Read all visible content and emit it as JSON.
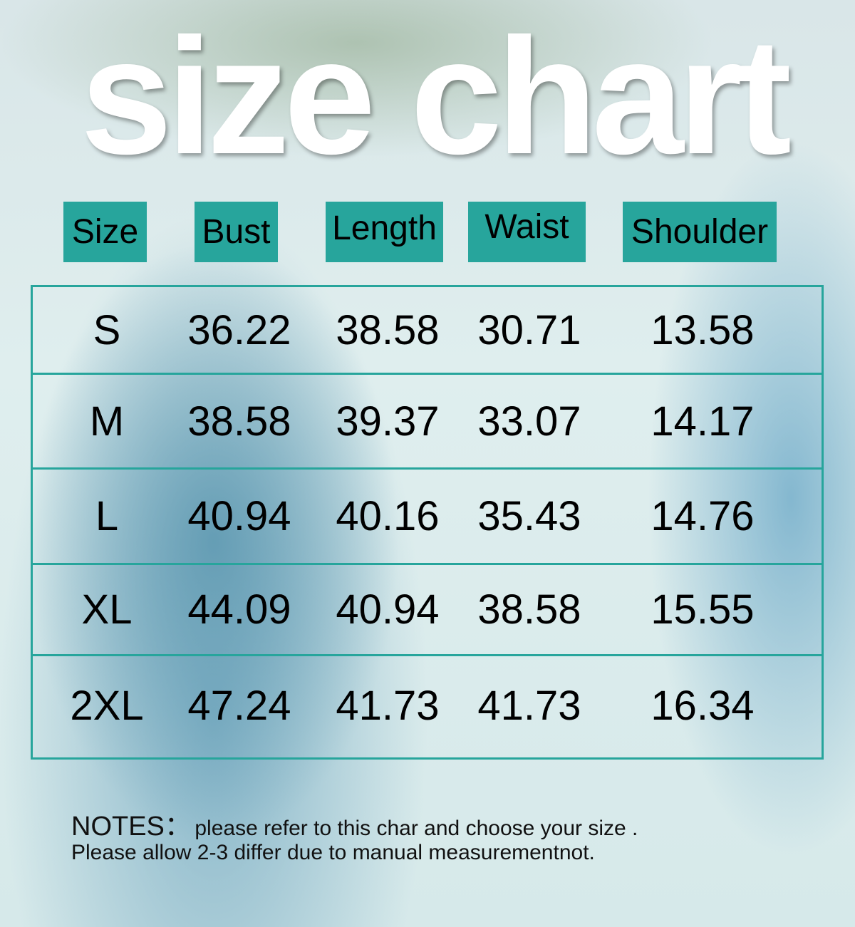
{
  "title": "size chart",
  "accent_color": "#27a59c",
  "headers": [
    "Size",
    "Bust",
    "Length",
    "Waist",
    "Shoulder"
  ],
  "rows": [
    [
      "S",
      "36.22",
      "38.58",
      "30.71",
      "13.58"
    ],
    [
      "M",
      "38.58",
      "39.37",
      "33.07",
      "14.17"
    ],
    [
      "L",
      "40.94",
      "40.16",
      "35.43",
      "14.76"
    ],
    [
      "XL",
      "44.09",
      "40.94",
      "38.58",
      "15.55"
    ],
    [
      "2XL",
      "47.24",
      "41.73",
      "41.73",
      "16.34"
    ]
  ],
  "notes": {
    "label": "NOTES：",
    "line1": "please refer to this char and choose your size .",
    "line2": "Please allow 2-3 differ due to manual measurementnot."
  }
}
